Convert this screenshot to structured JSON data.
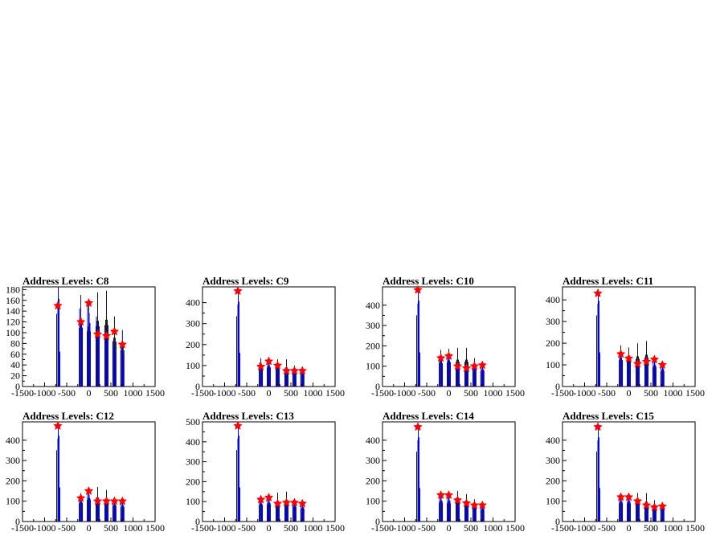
{
  "chart_data": [
    {
      "type": "bar",
      "title": "Address Levels: C8",
      "xlim": [
        -1500,
        1500
      ],
      "ylim": [
        0,
        185
      ],
      "xticks": [
        -1500,
        -1000,
        -500,
        0,
        500,
        1000,
        1500
      ],
      "yticks": [
        0,
        20,
        40,
        60,
        80,
        100,
        120,
        140,
        160,
        180
      ],
      "peaks": [
        {
          "x": -700,
          "black": 185,
          "blue": 185,
          "marker": 150
        },
        {
          "x": -180,
          "black": 170,
          "blue": 145,
          "marker": 120
        },
        {
          "x": 0,
          "black": 160,
          "blue": 155,
          "marker": 155
        },
        {
          "x": 200,
          "black": 175,
          "blue": 130,
          "marker": 97
        },
        {
          "x": 400,
          "black": 178,
          "blue": 110,
          "marker": 94
        },
        {
          "x": 580,
          "black": 130,
          "blue": 85,
          "marker": 102
        },
        {
          "x": 760,
          "black": 105,
          "blue": 80,
          "marker": 78
        }
      ]
    },
    {
      "type": "bar",
      "title": "Address Levels: C9",
      "xlim": [
        -1500,
        1500
      ],
      "ylim": [
        0,
        475
      ],
      "xticks": [
        -1500,
        -1000,
        -500,
        0,
        500,
        1000,
        1500
      ],
      "yticks": [
        0,
        100,
        200,
        300,
        400
      ],
      "peaks": [
        {
          "x": -700,
          "black": 460,
          "blue": 460,
          "marker": 455
        },
        {
          "x": -180,
          "black": 135,
          "blue": 115,
          "marker": 95
        },
        {
          "x": 0,
          "black": 140,
          "blue": 125,
          "marker": 120
        },
        {
          "x": 200,
          "black": 130,
          "blue": 110,
          "marker": 100
        },
        {
          "x": 400,
          "black": 130,
          "blue": 90,
          "marker": 75
        },
        {
          "x": 580,
          "black": 100,
          "blue": 85,
          "marker": 75
        },
        {
          "x": 760,
          "black": 90,
          "blue": 80,
          "marker": 75
        }
      ]
    },
    {
      "type": "bar",
      "title": "Address Levels: C10",
      "xlim": [
        -1500,
        1500
      ],
      "ylim": [
        0,
        490
      ],
      "xticks": [
        -1500,
        -1000,
        -500,
        0,
        500,
        1000,
        1500
      ],
      "yticks": [
        0,
        100,
        200,
        300,
        400
      ],
      "peaks": [
        {
          "x": -700,
          "black": 480,
          "blue": 480,
          "marker": 475
        },
        {
          "x": -180,
          "black": 180,
          "blue": 150,
          "marker": 140
        },
        {
          "x": 0,
          "black": 185,
          "blue": 160,
          "marker": 150
        },
        {
          "x": 200,
          "black": 190,
          "blue": 120,
          "marker": 100
        },
        {
          "x": 400,
          "black": 190,
          "blue": 110,
          "marker": 90
        },
        {
          "x": 580,
          "black": 140,
          "blue": 110,
          "marker": 100
        },
        {
          "x": 760,
          "black": 120,
          "blue": 110,
          "marker": 105
        }
      ]
    },
    {
      "type": "bar",
      "title": "Address Levels: C11",
      "xlim": [
        -1500,
        1500
      ],
      "ylim": [
        0,
        460
      ],
      "xticks": [
        -1500,
        -1000,
        -500,
        0,
        500,
        1000,
        1500
      ],
      "yticks": [
        0,
        100,
        200,
        300,
        400
      ],
      "peaks": [
        {
          "x": -700,
          "black": 450,
          "blue": 450,
          "marker": 430
        },
        {
          "x": -180,
          "black": 190,
          "blue": 160,
          "marker": 150
        },
        {
          "x": 0,
          "black": 180,
          "blue": 140,
          "marker": 130
        },
        {
          "x": 200,
          "black": 200,
          "blue": 120,
          "marker": 105
        },
        {
          "x": 400,
          "black": 210,
          "blue": 130,
          "marker": 115
        },
        {
          "x": 580,
          "black": 140,
          "blue": 130,
          "marker": 125
        },
        {
          "x": 760,
          "black": 110,
          "blue": 110,
          "marker": 100
        }
      ]
    },
    {
      "type": "bar",
      "title": "Address Levels: C12",
      "xlim": [
        -1500,
        1500
      ],
      "ylim": [
        0,
        490
      ],
      "xticks": [
        -1500,
        -1000,
        -500,
        0,
        500,
        1000,
        1500
      ],
      "yticks": [
        0,
        100,
        200,
        300,
        400
      ],
      "peaks": [
        {
          "x": -700,
          "black": 480,
          "blue": 480,
          "marker": 470
        },
        {
          "x": -180,
          "black": 140,
          "blue": 125,
          "marker": 115
        },
        {
          "x": 0,
          "black": 165,
          "blue": 150,
          "marker": 150
        },
        {
          "x": 200,
          "black": 170,
          "blue": 120,
          "marker": 100
        },
        {
          "x": 400,
          "black": 155,
          "blue": 110,
          "marker": 100
        },
        {
          "x": 580,
          "black": 120,
          "blue": 105,
          "marker": 100
        },
        {
          "x": 760,
          "black": 110,
          "blue": 105,
          "marker": 100
        }
      ]
    },
    {
      "type": "bar",
      "title": "Address Levels: C13",
      "xlim": [
        -1500,
        1500
      ],
      "ylim": [
        0,
        500
      ],
      "xticks": [
        -1500,
        -1000,
        -500,
        0,
        500,
        1000,
        1500
      ],
      "yticks": [
        0,
        100,
        200,
        300,
        400,
        500
      ],
      "peaks": [
        {
          "x": -700,
          "black": 490,
          "blue": 490,
          "marker": 480
        },
        {
          "x": -180,
          "black": 130,
          "blue": 115,
          "marker": 110
        },
        {
          "x": 0,
          "black": 135,
          "blue": 125,
          "marker": 120
        },
        {
          "x": 200,
          "black": 145,
          "blue": 100,
          "marker": 90
        },
        {
          "x": 400,
          "black": 150,
          "blue": 105,
          "marker": 95
        },
        {
          "x": 580,
          "black": 115,
          "blue": 100,
          "marker": 95
        },
        {
          "x": 760,
          "black": 100,
          "blue": 95,
          "marker": 90
        }
      ]
    },
    {
      "type": "bar",
      "title": "Address Levels: C14",
      "xlim": [
        -1500,
        1500
      ],
      "ylim": [
        0,
        490
      ],
      "xticks": [
        -1500,
        -1000,
        -500,
        0,
        500,
        1000,
        1500
      ],
      "yticks": [
        0,
        100,
        200,
        300,
        400
      ],
      "peaks": [
        {
          "x": -700,
          "black": 470,
          "blue": 470,
          "marker": 465
        },
        {
          "x": -180,
          "black": 145,
          "blue": 135,
          "marker": 130
        },
        {
          "x": 0,
          "black": 140,
          "blue": 135,
          "marker": 130
        },
        {
          "x": 200,
          "black": 150,
          "blue": 115,
          "marker": 105
        },
        {
          "x": 400,
          "black": 135,
          "blue": 100,
          "marker": 90
        },
        {
          "x": 580,
          "black": 110,
          "blue": 90,
          "marker": 80
        },
        {
          "x": 760,
          "black": 90,
          "blue": 85,
          "marker": 80
        }
      ]
    },
    {
      "type": "bar",
      "title": "Address Levels: C15",
      "xlim": [
        -1500,
        1500
      ],
      "ylim": [
        0,
        490
      ],
      "xticks": [
        -1500,
        -1000,
        -500,
        0,
        500,
        1000,
        1500
      ],
      "yticks": [
        0,
        100,
        200,
        300,
        400
      ],
      "peaks": [
        {
          "x": -700,
          "black": 470,
          "blue": 470,
          "marker": 465
        },
        {
          "x": -180,
          "black": 140,
          "blue": 130,
          "marker": 120
        },
        {
          "x": 0,
          "black": 140,
          "blue": 130,
          "marker": 120
        },
        {
          "x": 200,
          "black": 140,
          "blue": 110,
          "marker": 100
        },
        {
          "x": 400,
          "black": 140,
          "blue": 95,
          "marker": 80
        },
        {
          "x": 580,
          "black": 105,
          "blue": 80,
          "marker": 70
        },
        {
          "x": 760,
          "black": 90,
          "blue": 80,
          "marker": 75
        }
      ]
    }
  ],
  "colors": {
    "primary": "#000000",
    "secondary": "#0000ff",
    "marker": "#ff0000"
  }
}
